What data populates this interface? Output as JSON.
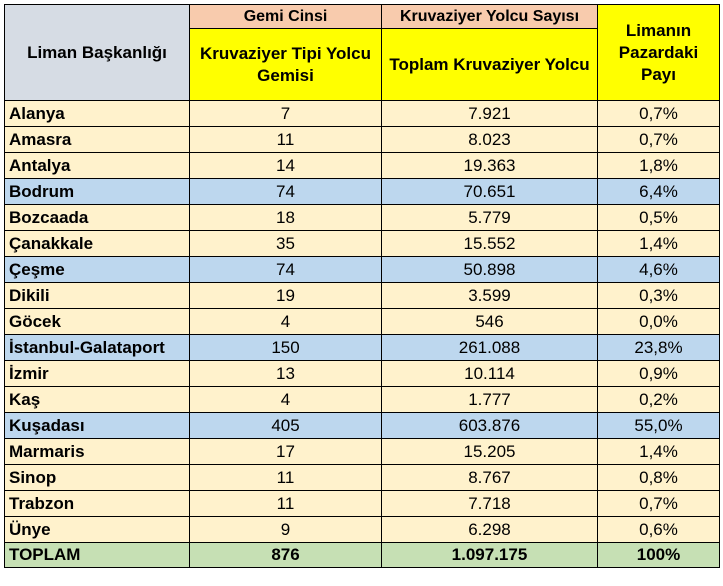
{
  "header": {
    "liman": "Liman Başkanlığı",
    "gemi_cinsi": "Gemi Cinsi",
    "yolcu_sayisi": "Kruvaziyer Yolcu Sayısı",
    "gemi_sub": "Kruvaziyer Tipi Yolcu Gemisi",
    "yolcu_sub": "Toplam Kruvaziyer Yolcu",
    "pay": "Limanın Pazardaki Payı"
  },
  "colors": {
    "beige": "#fff2cc",
    "blue": "#bdd7ee",
    "total": "#c6e0b4",
    "yellow": "#ffff00",
    "salmon": "#f8cbad",
    "grey": "#d6dce4"
  },
  "rows": [
    {
      "name": "Alanya",
      "ships": "7",
      "passengers": "7.921",
      "share": "0,7%",
      "hl": false
    },
    {
      "name": "Amasra",
      "ships": "11",
      "passengers": "8.023",
      "share": "0,7%",
      "hl": false
    },
    {
      "name": "Antalya",
      "ships": "14",
      "passengers": "19.363",
      "share": "1,8%",
      "hl": false
    },
    {
      "name": "Bodrum",
      "ships": "74",
      "passengers": "70.651",
      "share": "6,4%",
      "hl": true
    },
    {
      "name": "Bozcaada",
      "ships": "18",
      "passengers": "5.779",
      "share": "0,5%",
      "hl": false
    },
    {
      "name": "Çanakkale",
      "ships": "35",
      "passengers": "15.552",
      "share": "1,4%",
      "hl": false
    },
    {
      "name": "Çeşme",
      "ships": "74",
      "passengers": "50.898",
      "share": "4,6%",
      "hl": true
    },
    {
      "name": "Dikili",
      "ships": "19",
      "passengers": "3.599",
      "share": "0,3%",
      "hl": false
    },
    {
      "name": "Göcek",
      "ships": "4",
      "passengers": "546",
      "share": "0,0%",
      "hl": false
    },
    {
      "name": "İstanbul-Galataport",
      "ships": "150",
      "passengers": "261.088",
      "share": "23,8%",
      "hl": true
    },
    {
      "name": "İzmir",
      "ships": "13",
      "passengers": "10.114",
      "share": "0,9%",
      "hl": false
    },
    {
      "name": "Kaş",
      "ships": "4",
      "passengers": "1.777",
      "share": "0,2%",
      "hl": false
    },
    {
      "name": "Kuşadası",
      "ships": "405",
      "passengers": "603.876",
      "share": "55,0%",
      "hl": true
    },
    {
      "name": "Marmaris",
      "ships": "17",
      "passengers": "15.205",
      "share": "1,4%",
      "hl": false
    },
    {
      "name": "Sinop",
      "ships": "11",
      "passengers": "8.767",
      "share": "0,8%",
      "hl": false
    },
    {
      "name": "Trabzon",
      "ships": "11",
      "passengers": "7.718",
      "share": "0,7%",
      "hl": false
    },
    {
      "name": "Ünye",
      "ships": "9",
      "passengers": "6.298",
      "share": "0,6%",
      "hl": false
    }
  ],
  "total": {
    "name": "TOPLAM",
    "ships": "876",
    "passengers": "1.097.175",
    "share": "100%"
  }
}
